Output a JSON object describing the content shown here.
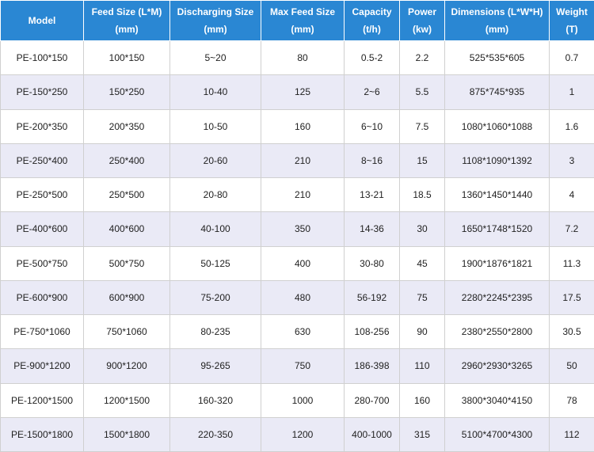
{
  "table": {
    "headers": [
      {
        "line1": "Model",
        "line2": ""
      },
      {
        "line1": "Feed Size (L*M)",
        "line2": "(mm)"
      },
      {
        "line1": "Discharging Size",
        "line2": "(mm)"
      },
      {
        "line1": "Max Feed Size",
        "line2": "(mm)"
      },
      {
        "line1": "Capacity",
        "line2": "(t/h)"
      },
      {
        "line1": "Power",
        "line2": "(kw)"
      },
      {
        "line1": "Dimensions (L*W*H)",
        "line2": "(mm)"
      },
      {
        "line1": "Weight",
        "line2": "(T)"
      }
    ],
    "rows": [
      [
        "PE-100*150",
        "100*150",
        "5~20",
        "80",
        "0.5-2",
        "2.2",
        "525*535*605",
        "0.7"
      ],
      [
        "PE-150*250",
        "150*250",
        "10-40",
        "125",
        "2~6",
        "5.5",
        "875*745*935",
        "1"
      ],
      [
        "PE-200*350",
        "200*350",
        "10-50",
        "160",
        "6~10",
        "7.5",
        "1080*1060*1088",
        "1.6"
      ],
      [
        "PE-250*400",
        "250*400",
        "20-60",
        "210",
        "8~16",
        "15",
        "1108*1090*1392",
        "3"
      ],
      [
        "PE-250*500",
        "250*500",
        "20-80",
        "210",
        "13-21",
        "18.5",
        "1360*1450*1440",
        "4"
      ],
      [
        "PE-400*600",
        "400*600",
        "40-100",
        "350",
        "14-36",
        "30",
        "1650*1748*1520",
        "7.2"
      ],
      [
        "PE-500*750",
        "500*750",
        "50-125",
        "400",
        "30-80",
        "45",
        "1900*1876*1821",
        "11.3"
      ],
      [
        "PE-600*900",
        "600*900",
        "75-200",
        "480",
        "56-192",
        "75",
        "2280*2245*2395",
        "17.5"
      ],
      [
        "PE-750*1060",
        "750*1060",
        "80-235",
        "630",
        "108-256",
        "90",
        "2380*2550*2800",
        "30.5"
      ],
      [
        "PE-900*1200",
        "900*1200",
        "95-265",
        "750",
        "186-398",
        "110",
        "2960*2930*3265",
        "50"
      ],
      [
        "PE-1200*1500",
        "1200*1500",
        "160-320",
        "1000",
        "280-700",
        "160",
        "3800*3040*4150",
        "78"
      ],
      [
        "PE-1500*1800",
        "1500*1800",
        "220-350",
        "1200",
        "400-1000",
        "315",
        "5100*4700*4300",
        "112"
      ]
    ]
  },
  "colors": {
    "header_bg": "#2a87d3",
    "header_text": "#ffffff",
    "row_alt_bg": "#eaeaf6",
    "row_bg": "#ffffff",
    "grid": "#d0d0d0"
  }
}
